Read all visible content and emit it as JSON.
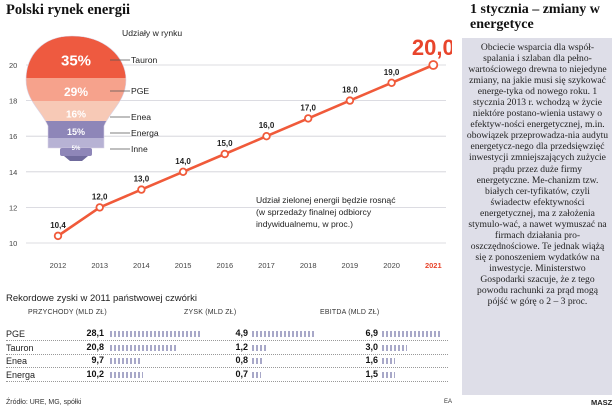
{
  "chart_data": [
    {
      "type": "line",
      "title": "Polski rynek energii",
      "x": [
        2012,
        2013,
        2014,
        2015,
        2016,
        2017,
        2018,
        2019,
        2020,
        2021
      ],
      "x_tick_labels": [
        "2012",
        "2013",
        "2014",
        "2015",
        "2016",
        "2017",
        "2018",
        "2019",
        "2020",
        "2021"
      ],
      "values": [
        10.4,
        12.0,
        13.0,
        14.0,
        15.0,
        16.0,
        17.0,
        18.0,
        19.0,
        20.0
      ],
      "data_labels": [
        "10,4",
        "12,0",
        "13,0",
        "14,0",
        "15,0",
        "16,0",
        "17,0",
        "18,0",
        "19,0",
        "20,0"
      ],
      "ylim": [
        10,
        20
      ],
      "y_ticks": [
        10,
        12,
        14,
        16,
        18,
        20
      ],
      "y_tick_labels": [
        "10",
        "12",
        "14",
        "16",
        "18",
        "20"
      ],
      "grid": "horizontal",
      "highlight_last": true,
      "annotation": "Udział zielonej energii będzie rosnąć (w sprzedaży finalnej odbiorcy indywidualnemu, w proc.)",
      "annotation_lines": [
        "Udział zielonej energii będzie rosnąć",
        "(w sprzedaży finalnej odbiorcy",
        "indywidualnemu, w proc.)"
      ],
      "colors": {
        "line": "#f05a3a",
        "highlight": "#e8452c",
        "point_fill": "#ffffff"
      }
    },
    {
      "type": "stacked-bulb",
      "title": "Udziały w rynku",
      "segments": [
        {
          "name": "Tauron",
          "value": 35,
          "label": "35%",
          "color": "#ee5a40"
        },
        {
          "name": "PGE",
          "value": 29,
          "label": "29%",
          "color": "#f6a28c"
        },
        {
          "name": "Enea",
          "value": 16,
          "label": "16%",
          "color": "#f7c9b6"
        },
        {
          "name": "Energa",
          "value": 15,
          "label": "15%",
          "color": "#8e86b8"
        },
        {
          "name": "Inne",
          "value": 5,
          "label": "5%",
          "color": "#b7b2d4"
        }
      ]
    },
    {
      "type": "table",
      "title": "Rekordowe zyski w 2011 państwowej czwórki",
      "columns": [
        "PRZYCHODY (MLD ZŁ)",
        "ZYSK (MLD ZŁ)",
        "EBITDA (MLD ZŁ)"
      ],
      "rows": [
        {
          "company": "PGE",
          "przychody": 28.1,
          "przychody_label": "28,1",
          "zysk": 4.9,
          "zysk_label": "4,9",
          "ebitda": 6.9,
          "ebitda_label": "6,9"
        },
        {
          "company": "Tauron",
          "przychody": 20.8,
          "przychody_label": "20,8",
          "zysk": 1.2,
          "zysk_label": "1,2",
          "ebitda": 3.0,
          "ebitda_label": "3,0"
        },
        {
          "company": "Enea",
          "przychody": 9.7,
          "przychody_label": "9,7",
          "zysk": 0.8,
          "zysk_label": "0,8",
          "ebitda": 1.6,
          "ebitda_label": "1,6"
        },
        {
          "company": "Energa",
          "przychody": 10.2,
          "przychody_label": "10,2",
          "zysk": 0.7,
          "zysk_label": "0,7",
          "ebitda": 1.5,
          "ebitda_label": "1,5"
        }
      ],
      "bar_color": "#a8a8c8"
    }
  ],
  "source": "Źródło: URE, MG, spółki",
  "initials": "EA",
  "article": {
    "title": "1 stycznia – zmiany w energetyce",
    "body": "Obciecie wsparcia dla współ-spalania i szlaban dla pełno-wartościowego drewna to niejedyne zmiany, na jakie musi się szykować energe-tyka od nowego roku. 1 stycznia 2013 r. wchodzą w życie niektóre postano-wienia ustawy o efektyw-ności energetycznej, m.in. obowiązek przeprowadza-nia audytu energetycz-nego dla przedsięwzięć inwestycji zmniejszających zużycie prądu przez duże firmy energetyczne. Me-chanizm tzw. białych cer-tyfikatów, czyli świadectw efektywności energetycznej, ma z założenia stymulo-wać, a nawet wymuszać na firmach działania pro-oszczędnościowe. Te jednak wiążą się z ponoszeniem wydatków na inwestycje. Ministerstwo Gospodarki szacuje, że z tego powodu rachunki za prąd mogą pójść w górę o 2 – 3 proc.",
    "author": "MASZ"
  }
}
